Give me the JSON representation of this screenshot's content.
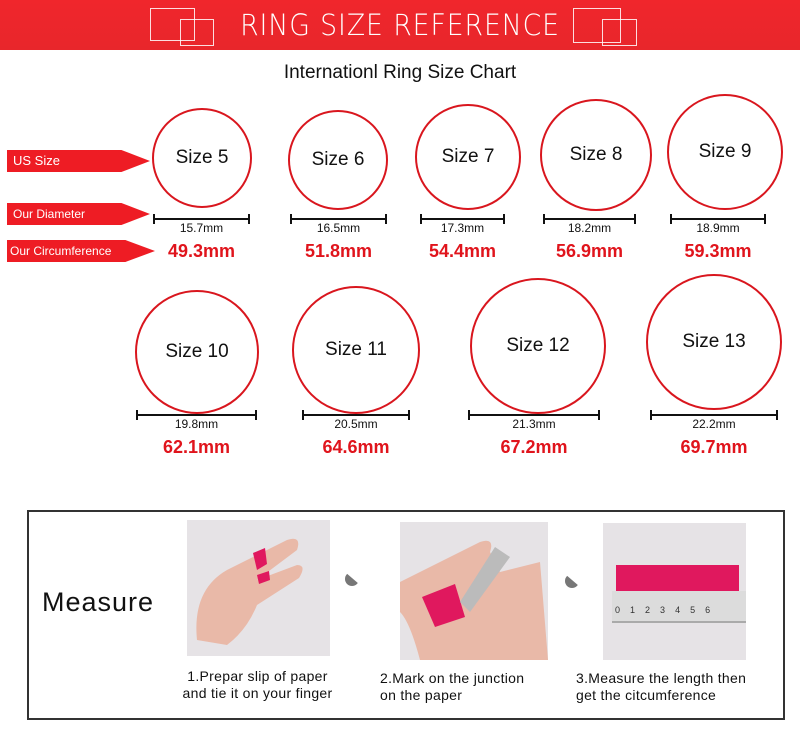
{
  "banner": {
    "title": "RING SIZE REFERENCE",
    "color": "#ee1c24"
  },
  "subtitle": "Internationl Ring Size Chart",
  "row_labels": {
    "us_size": "US Size",
    "diameter": "Our Diameter",
    "circumference": "Our Circumference"
  },
  "rings": [
    {
      "size": "Size 5",
      "diameter": "15.7mm",
      "circumference": "49.3mm"
    },
    {
      "size": "Size 6",
      "diameter": "16.5mm",
      "circumference": "51.8mm"
    },
    {
      "size": "Size 7",
      "diameter": "17.3mm",
      "circumference": "54.4mm"
    },
    {
      "size": "Size 8",
      "diameter": "18.2mm",
      "circumference": "56.9mm"
    },
    {
      "size": "Size 9",
      "diameter": "18.9mm",
      "circumference": "59.3mm"
    },
    {
      "size": "Size 10",
      "diameter": "19.8mm",
      "circumference": "62.1mm"
    },
    {
      "size": "Size 11",
      "diameter": "20.5mm",
      "circumference": "64.6mm"
    },
    {
      "size": "Size 12",
      "diameter": "21.3mm",
      "circumference": "67.2mm"
    },
    {
      "size": "Size 13",
      "diameter": "22.2mm",
      "circumference": "69.7mm"
    }
  ],
  "measure": {
    "title": "Measure",
    "steps": [
      {
        "line1": "1.Prepar slip of paper",
        "line2": "and tie it on your finger"
      },
      {
        "line1": "2.Mark on the junction",
        "line2": "on the paper"
      },
      {
        "line1": "3.Measure the length then",
        "line2": "get the citcumference"
      }
    ],
    "ruler_ticks": [
      "0",
      "1",
      "2",
      "3",
      "4",
      "5",
      "6"
    ]
  }
}
